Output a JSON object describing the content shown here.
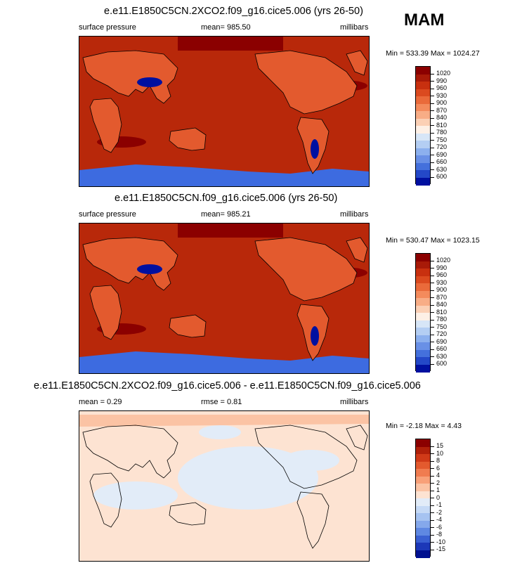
{
  "season": "MAM",
  "panels": [
    {
      "title": "e.e11.E1850C5CN.2XCO2.f09_g16.cice5.006 (yrs 26-50)",
      "left_label": "surface pressure",
      "center_label": "mean= 985.50",
      "right_label": "millibars",
      "minmax": "Min = 533.39 Max = 1024.27",
      "colorbar": {
        "labels": [
          "1020",
          "990",
          "960",
          "930",
          "900",
          "870",
          "840",
          "810",
          "780",
          "750",
          "720",
          "690",
          "660",
          "630",
          "600"
        ],
        "colors": [
          "#8b0000",
          "#a81a08",
          "#c8300f",
          "#db4a1f",
          "#ea6a3a",
          "#f48b5c",
          "#f8ad86",
          "#fbd0b5",
          "#fdf0e6",
          "#d7e6f7",
          "#b4cef3",
          "#8cb0ee",
          "#6990e6",
          "#4470dc",
          "#2448c8",
          "#0010a0"
        ]
      }
    },
    {
      "title": "e.e11.E1850C5CN.f09_g16.cice5.006 (yrs 26-50)",
      "left_label": "surface pressure",
      "center_label": "mean= 985.21",
      "right_label": "millibars",
      "minmax": "Min = 530.47 Max = 1023.15",
      "colorbar": {
        "labels": [
          "1020",
          "990",
          "960",
          "930",
          "900",
          "870",
          "840",
          "810",
          "780",
          "750",
          "720",
          "690",
          "660",
          "630",
          "600"
        ],
        "colors": [
          "#8b0000",
          "#a81a08",
          "#c8300f",
          "#db4a1f",
          "#ea6a3a",
          "#f48b5c",
          "#f8ad86",
          "#fbd0b5",
          "#fdf0e6",
          "#d7e6f7",
          "#b4cef3",
          "#8cb0ee",
          "#6990e6",
          "#4470dc",
          "#2448c8",
          "#0010a0"
        ]
      }
    },
    {
      "title": "e.e11.E1850C5CN.2XCO2.f09_g16.cice5.006 - e.e11.E1850C5CN.f09_g16.cice5.006",
      "left_label": "mean =   0.29",
      "center_label": "rmse =   0.81",
      "right_label": "millibars",
      "minmax": "Min = -2.18 Max =   4.43",
      "colorbar": {
        "labels": [
          "15",
          "10",
          "8",
          "6",
          "4",
          "2",
          "1",
          "0",
          "-1",
          "-2",
          "-4",
          "-6",
          "-8",
          "-10",
          "-15"
        ],
        "colors": [
          "#8b0000",
          "#b0200a",
          "#d03a18",
          "#e35a2e",
          "#f07c50",
          "#f8a078",
          "#fbc3a4",
          "#fde3d2",
          "#e2ecf8",
          "#c6daf6",
          "#a6c3f1",
          "#85a8eb",
          "#5f88e2",
          "#3a60d2",
          "#1c38b8",
          "#001090"
        ]
      }
    }
  ]
}
